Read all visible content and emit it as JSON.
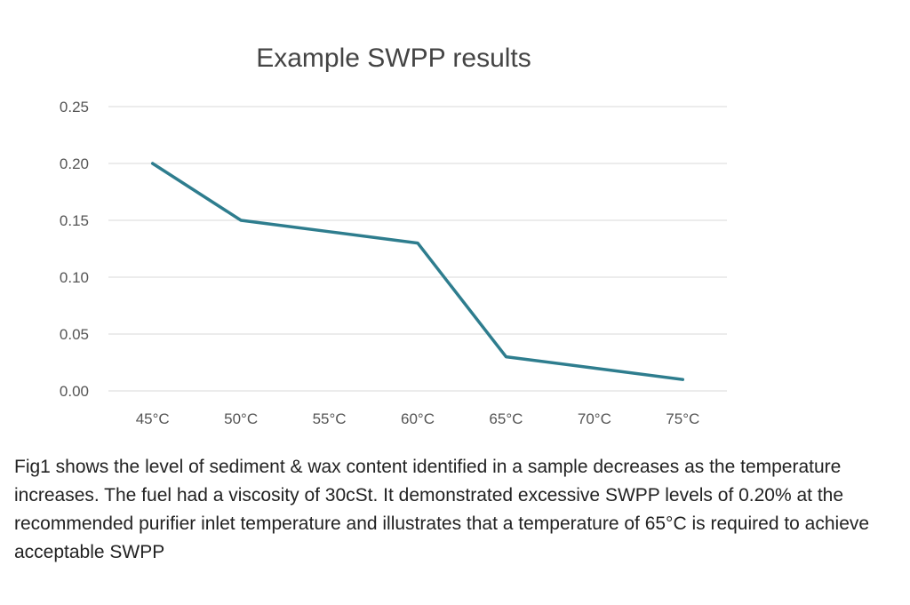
{
  "chart_data": {
    "type": "line",
    "title": "Example SWPP results",
    "xlabel": "",
    "ylabel": "",
    "categories": [
      "45°C",
      "50°C",
      "55°C",
      "60°C",
      "65°C",
      "70°C",
      "75°C"
    ],
    "series": [
      {
        "name": "SWPP",
        "values": [
          0.2,
          0.15,
          0.14,
          0.13,
          0.03,
          0.02,
          0.01
        ]
      }
    ],
    "ylim": [
      0,
      0.25
    ],
    "yticks": [
      "0.00",
      "0.05",
      "0.10",
      "0.15",
      "0.20",
      "0.25"
    ],
    "grid": true,
    "line_color": "#2e7d8e"
  },
  "caption": "Fig1 shows the level of sediment & wax content identified in a sample decreases as the temperature increases.  The fuel had a viscosity of 30cSt.  It demonstrated excessive SWPP levels of 0.20% at the recommended purifier inlet temperature and illustrates that a temperature of 65°C is required to achieve acceptable SWPP"
}
